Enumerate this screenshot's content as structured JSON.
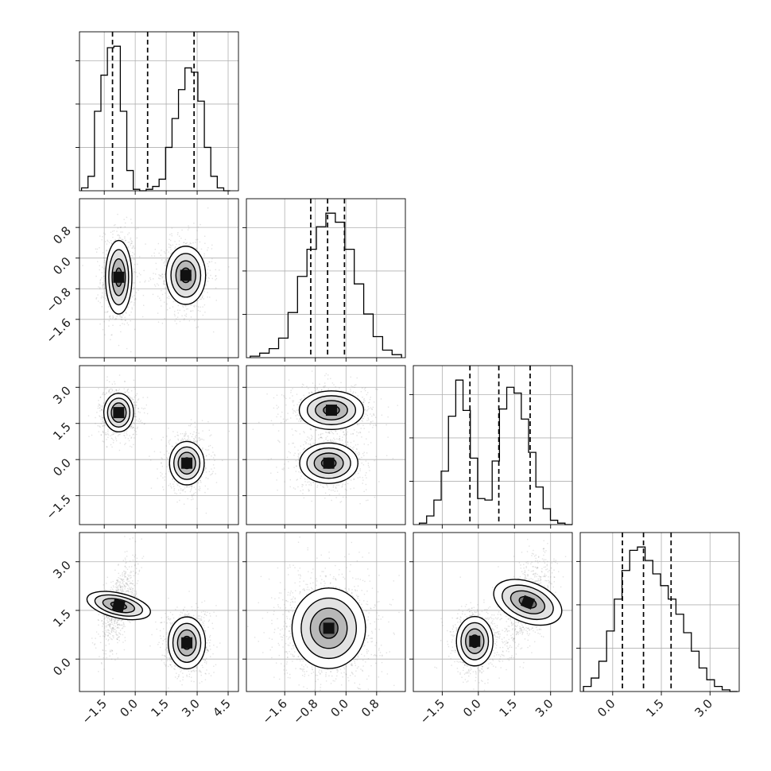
{
  "chart_data": {
    "type": "corner",
    "n_params": 4,
    "grid": true,
    "axes_ticks": [
      {
        "ticks": [
          -1.5,
          0.0,
          1.5,
          3.0,
          4.5
        ],
        "labels": [
          "−1.5",
          "0.0",
          "1.5",
          "3.0",
          "4.5"
        ],
        "range": [
          -2.7,
          5.0
        ]
      },
      {
        "ticks": [
          -1.6,
          -0.8,
          0.0,
          0.8
        ],
        "labels": [
          "−1.6",
          "−0.8",
          "0.0",
          "0.8"
        ],
        "range": [
          -2.6,
          1.55
        ]
      },
      {
        "ticks": [
          -1.5,
          0.0,
          1.5,
          3.0
        ],
        "labels": [
          "−1.5",
          "0.0",
          "1.5",
          "3.0"
        ],
        "range": [
          -2.7,
          3.9
        ]
      },
      {
        "ticks": [
          0.0,
          1.5,
          3.0
        ],
        "labels": [
          "0.0",
          "1.5",
          "3.0"
        ],
        "range": [
          -1.0,
          3.9
        ]
      }
    ],
    "histograms": [
      {
        "param": 0,
        "bin_edges": [
          -2.6,
          4.6
        ],
        "counts": [
          2,
          10,
          55,
          80,
          99,
          100,
          55,
          14,
          1,
          0,
          1,
          3,
          8,
          30,
          50,
          70,
          85,
          82,
          62,
          30,
          10,
          2,
          0
        ],
        "quantiles": [
          -1.1,
          0.6,
          2.85
        ]
      },
      {
        "param": 1,
        "bin_edges": [
          -2.5,
          1.45
        ],
        "counts": [
          1,
          3,
          6,
          13,
          30,
          54,
          72,
          87,
          96,
          90,
          72,
          49,
          29,
          14,
          5,
          2
        ],
        "quantiles": [
          -0.92,
          -0.48,
          -0.04
        ]
      },
      {
        "param": 2,
        "bin_edges": [
          -2.45,
          3.9
        ],
        "counts": [
          1,
          6,
          17,
          37,
          75,
          100,
          79,
          46,
          18,
          17,
          44,
          80,
          95,
          91,
          73,
          50,
          26,
          11,
          3,
          1,
          0
        ],
        "quantiles": [
          -0.35,
          0.85,
          2.15
        ]
      },
      {
        "param": 3,
        "bin_edges": [
          -0.9,
          3.85
        ],
        "counts": [
          3,
          8,
          18,
          36,
          55,
          72,
          84,
          86,
          78,
          70,
          63,
          55,
          46,
          35,
          24,
          14,
          7,
          3,
          1,
          0
        ],
        "quantiles": [
          0.3,
          0.95,
          1.8
        ]
      }
    ],
    "scatter_panels": [
      {
        "x": 0,
        "y": 1,
        "modes": [
          {
            "center": [
              -0.8,
              -0.5
            ],
            "sigma": [
              0.32,
              0.48
            ],
            "corr": 0
          },
          {
            "center": [
              2.45,
              -0.45
            ],
            "sigma": [
              0.48,
              0.38
            ],
            "corr": 0
          }
        ]
      },
      {
        "x": 0,
        "y": 2,
        "modes": [
          {
            "center": [
              -0.8,
              1.95
            ],
            "sigma": [
              0.36,
              0.4
            ],
            "corr": 0
          },
          {
            "center": [
              2.5,
              -0.15
            ],
            "sigma": [
              0.42,
              0.45
            ],
            "corr": 0
          }
        ]
      },
      {
        "x": 1,
        "y": 2,
        "modes": [
          {
            "center": [
              -0.38,
              2.05
            ],
            "sigma": [
              0.42,
              0.4
            ],
            "corr": 0
          },
          {
            "center": [
              -0.45,
              -0.15
            ],
            "sigma": [
              0.38,
              0.42
            ],
            "corr": 0
          }
        ]
      },
      {
        "x": 0,
        "y": 3,
        "modes": [
          {
            "center": [
              -0.8,
              1.65
            ],
            "sigma": [
              0.3,
              0.5
            ],
            "corr": 0.55
          },
          {
            "center": [
              2.5,
              0.5
            ],
            "sigma": [
              0.45,
              0.4
            ],
            "corr": 0
          }
        ]
      },
      {
        "x": 1,
        "y": 3,
        "modes": [
          {
            "center": [
              -0.45,
              0.95
            ],
            "sigma": [
              0.48,
              0.62
            ],
            "corr": 0
          }
        ]
      },
      {
        "x": 2,
        "y": 3,
        "modes": [
          {
            "center": [
              -0.15,
              0.55
            ],
            "sigma": [
              0.38,
              0.38
            ],
            "corr": 0
          },
          {
            "center": [
              2.05,
              1.75
            ],
            "sigma": [
              0.42,
              0.55
            ],
            "corr": 0.55
          }
        ]
      }
    ]
  }
}
